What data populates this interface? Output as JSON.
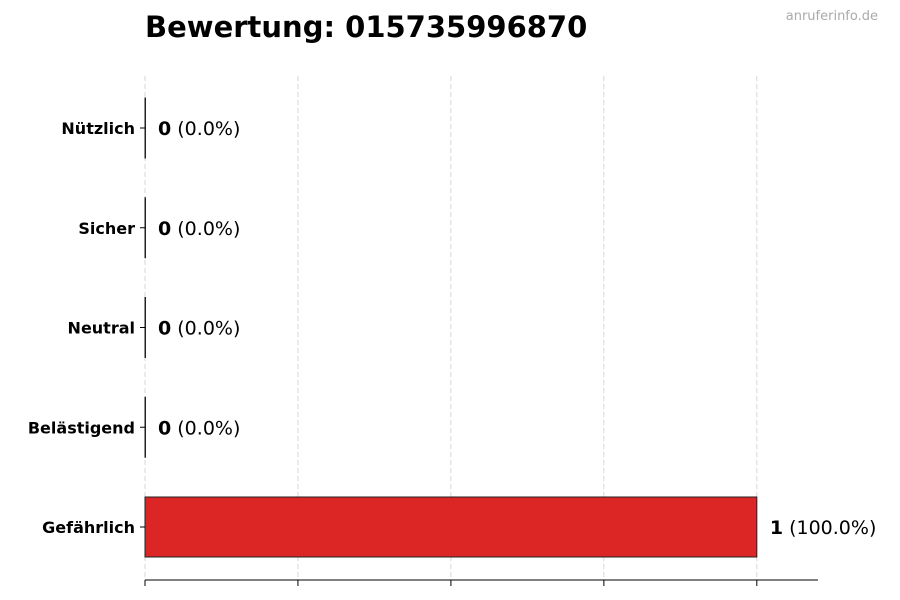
{
  "title": "Bewertung: 015735996870",
  "watermark": "anruferinfo.de",
  "chart_data": {
    "type": "bar",
    "orientation": "horizontal",
    "title": "Bewertung: 015735996870",
    "categories": [
      "Nützlich",
      "Sicher",
      "Neutral",
      "Belästigend",
      "Gefährlich"
    ],
    "values": [
      0,
      0,
      0,
      0,
      1
    ],
    "value_labels": [
      "0",
      "0",
      "0",
      "0",
      "1"
    ],
    "percent_labels": [
      "(0.0%)",
      "(0.0%)",
      "(0.0%)",
      "(0.0%)",
      "(100.0%)"
    ],
    "bar_color": "#dc2626",
    "xlim": [
      0,
      1.1
    ],
    "xticks": [
      0,
      0.25,
      0.5,
      0.75,
      1.0
    ],
    "xtick_labels_shown": false,
    "grid": "x, dashed",
    "xlabel": "",
    "ylabel": ""
  }
}
